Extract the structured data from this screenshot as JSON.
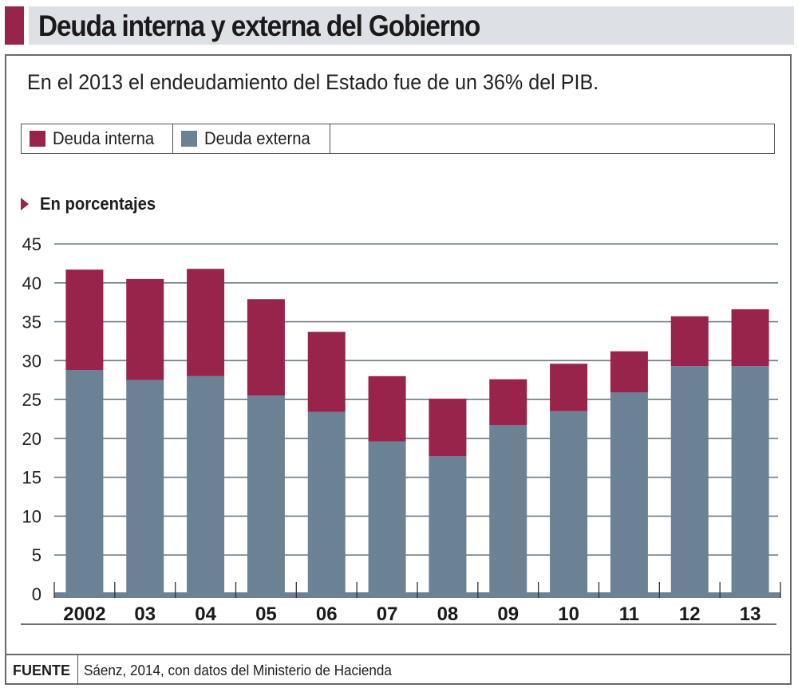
{
  "header": {
    "title": "Deuda interna y externa del Gobierno",
    "subtitle": "En el 2013 el endeudamiento del Estado fue de un 36% del PIB."
  },
  "legend": [
    {
      "label": "Deuda interna",
      "color": "#98234b"
    },
    {
      "label": "Deuda externa",
      "color": "#6b8194"
    }
  ],
  "unit_label": "En porcentajes",
  "footer": {
    "label": "FUENTE",
    "text": "Sáenz, 2014, con datos del Ministerio de Hacienda"
  },
  "colors": {
    "accent": "#98234b",
    "interna": "#98234b",
    "externa": "#6b8194",
    "grid": "#6b7a86"
  },
  "chart_data": {
    "type": "bar",
    "stacked": true,
    "title": "Deuda interna y externa del Gobierno",
    "subtitle": "En el 2013 el endeudamiento del Estado fue de un 36% del PIB.",
    "xlabel": "",
    "ylabel": "En porcentajes",
    "categories": [
      "2002",
      "03",
      "04",
      "05",
      "06",
      "07",
      "08",
      "09",
      "10",
      "11",
      "12",
      "13"
    ],
    "series": [
      {
        "name": "Deuda externa",
        "values": [
          28.8,
          27.5,
          28.0,
          25.5,
          23.4,
          19.6,
          17.7,
          21.7,
          23.5,
          25.9,
          29.3,
          29.3
        ]
      },
      {
        "name": "Deuda interna",
        "values": [
          12.9,
          13.0,
          13.8,
          12.4,
          10.3,
          8.4,
          7.4,
          5.9,
          6.1,
          5.3,
          6.4,
          7.3
        ]
      }
    ],
    "totals": [
      41.7,
      40.5,
      41.8,
      37.9,
      33.7,
      28.0,
      25.1,
      27.6,
      29.6,
      31.2,
      35.7,
      36.6
    ],
    "yticks": [
      0,
      5,
      10,
      15,
      20,
      25,
      30,
      35,
      40,
      45
    ],
    "ylim": [
      0,
      45
    ],
    "grid": true,
    "legend_position": "top"
  }
}
